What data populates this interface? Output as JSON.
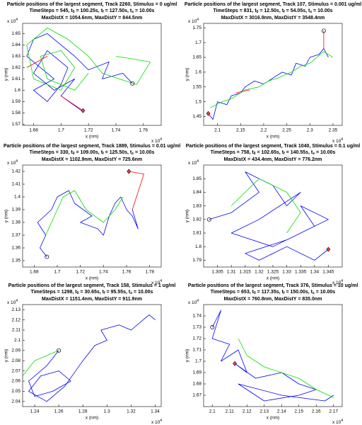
{
  "chart_data": [
    {
      "type": "line",
      "title": "Particle positions of the largest segment, Track 2260, Stimulus = 0 ug/ml",
      "subtitle": [
        "TimeSteps = 545, t",
        "0",
        " = 100.25s, t",
        "f",
        " = 127.50s, t",
        "s",
        " = 10.00s"
      ],
      "note": "MaxDistX = 1054.6nm, MaxDistY = 844.5nm",
      "xlabel": "x (nm)",
      "ylabel": "y (nm)",
      "xscale": [
        "x 10",
        "4"
      ],
      "yscale": [
        "x 10",
        "4"
      ],
      "xlim": [
        1.672,
        1.773
      ],
      "ylim": [
        1.569,
        1.659
      ],
      "xticks": [
        1.68,
        1.7,
        1.72,
        1.74,
        1.76
      ],
      "yticks": [
        1.57,
        1.58,
        1.59,
        1.6,
        1.61,
        1.62,
        1.63,
        1.64,
        1.65
      ],
      "series": [
        {
          "color": "#0000ff",
          "x": [
            1.752,
            1.745,
            1.73,
            1.735,
            1.72,
            1.71,
            1.7,
            1.69,
            1.68,
            1.675,
            1.685,
            1.695,
            1.68,
            1.69,
            1.7,
            1.705,
            1.69,
            1.68,
            1.695,
            1.71,
            1.7,
            1.715
          ],
          "values": [
            1.606,
            1.615,
            1.61,
            1.625,
            1.618,
            1.63,
            1.64,
            1.65,
            1.645,
            1.63,
            1.62,
            1.61,
            1.6,
            1.59,
            1.605,
            1.62,
            1.635,
            1.615,
            1.6,
            1.61,
            1.595,
            1.582
          ]
        },
        {
          "color": "#00dd00",
          "x": [
            1.74,
            1.765,
            1.755,
            1.73,
            1.72,
            1.705,
            1.69,
            1.675,
            1.68,
            1.7,
            1.71,
            1.7,
            1.685,
            1.69,
            1.71,
            1.72
          ],
          "values": [
            1.63,
            1.625,
            1.605,
            1.615,
            1.63,
            1.645,
            1.655,
            1.64,
            1.61,
            1.6,
            1.62,
            1.635,
            1.63,
            1.61,
            1.6,
            1.615
          ]
        },
        {
          "color": "#ff0000",
          "x": [
            1.675,
            1.69,
            null,
            1.7,
            1.716
          ],
          "values": [
            1.62,
            1.63,
            null,
            1.595,
            1.582
          ]
        }
      ],
      "start": [
        1.752,
        1.606
      ],
      "end": [
        1.716,
        1.582
      ]
    },
    {
      "type": "line",
      "title": "Particle positions of the largest segment, Track 107, Stimulus = 0.001 ug/ml",
      "subtitle": [
        "TimeSteps = 831, t",
        "0",
        " = 12.50s, t",
        "f",
        " = 54.05s, t",
        "s",
        " = 10.00s"
      ],
      "note": "MaxDistX = 3016.9nm, MaxDistY = 3548.4nm",
      "xlabel": "x (nm)",
      "ylabel": "y (nm)",
      "xscale": [
        "x 10",
        "4"
      ],
      "yscale": [
        "x 10",
        "4"
      ],
      "xlim": [
        2.07,
        2.37
      ],
      "ylim": [
        1.42,
        1.765
      ],
      "xticks": [
        2.1,
        2.15,
        2.2,
        2.25,
        2.3,
        2.35
      ],
      "yticks": [
        1.45,
        1.5,
        1.55,
        1.6,
        1.65,
        1.7,
        1.75
      ],
      "series": [
        {
          "color": "#0000ff",
          "x": [
            2.08,
            2.09,
            2.1,
            2.12,
            2.13,
            2.15,
            2.16,
            2.18,
            2.2,
            2.22,
            2.24,
            2.26,
            2.27,
            2.29,
            2.3,
            2.32,
            2.33,
            2.34
          ],
          "values": [
            1.46,
            1.44,
            1.5,
            1.49,
            1.52,
            1.53,
            1.55,
            1.57,
            1.56,
            1.58,
            1.6,
            1.59,
            1.63,
            1.62,
            1.65,
            1.66,
            1.68,
            1.65
          ]
        },
        {
          "color": "#00dd00",
          "x": [
            2.085,
            2.11,
            2.13,
            2.16,
            2.19,
            2.21,
            2.23,
            2.26,
            2.28,
            2.3,
            2.33,
            2.35
          ],
          "values": [
            1.48,
            1.5,
            1.51,
            1.54,
            1.55,
            1.57,
            1.58,
            1.6,
            1.62,
            1.63,
            1.67,
            1.65
          ]
        },
        {
          "color": "#ff0000",
          "x": [
            2.14,
            2.17,
            null,
            2.33,
            2.33
          ],
          "values": [
            1.53,
            1.54,
            null,
            1.68,
            1.74
          ]
        }
      ],
      "start": [
        2.33,
        1.74
      ],
      "end": [
        2.08,
        1.46
      ]
    },
    {
      "type": "line",
      "title": "Particle positions of the largest segment, Track 1889, Stimulus = 0.01 ug/ml",
      "subtitle": [
        "TimeSteps = 330, t",
        "0",
        " = 109.00s, t",
        "f",
        " = 125.50s, t",
        "s",
        " = 10.00s"
      ],
      "note": "MaxDistX = 1102.9nm, MaxDistY = 725.6nm",
      "xlabel": "x (nm)",
      "ylabel": "y (nm)",
      "xscale": [
        "x 10",
        "4"
      ],
      "yscale": [
        "x 10",
        "4"
      ],
      "xlim": [
        1.67,
        1.79
      ],
      "ylim": [
        1.345,
        1.425
      ],
      "xticks": [
        1.68,
        1.7,
        1.72,
        1.74,
        1.76,
        1.78
      ],
      "yticks": [
        1.35,
        1.36,
        1.37,
        1.38,
        1.39,
        1.4,
        1.41,
        1.42
      ],
      "series": [
        {
          "color": "#0000ff",
          "x": [
            1.691,
            1.685,
            1.69,
            1.683,
            1.695,
            1.7,
            1.71,
            1.715,
            1.73,
            1.72,
            1.735,
            1.74,
            1.745,
            1.75,
            1.755,
            1.76,
            1.765,
            1.77,
            1.765
          ],
          "values": [
            1.353,
            1.36,
            1.37,
            1.38,
            1.39,
            1.4,
            1.405,
            1.395,
            1.385,
            1.38,
            1.375,
            1.37,
            1.385,
            1.395,
            1.4,
            1.39,
            1.385,
            1.375,
            1.39
          ]
        },
        {
          "color": "#00dd00",
          "x": [
            1.69,
            1.7,
            1.705,
            1.715,
            1.725,
            1.74,
            1.75,
            1.757
          ],
          "values": [
            1.37,
            1.39,
            1.4,
            1.405,
            1.39,
            1.38,
            1.39,
            1.4
          ]
        },
        {
          "color": "#ff0000",
          "x": [
            1.765,
            1.775,
            1.762
          ],
          "values": [
            1.39,
            1.418,
            1.42
          ]
        }
      ],
      "start": [
        1.691,
        1.353
      ],
      "end": [
        1.762,
        1.42
      ]
    },
    {
      "type": "line",
      "title": "Particle positions of the largest segment, Track 1040, Stimulus = 0.1 ug/ml",
      "subtitle": [
        "TimeSteps = 758, t",
        "0",
        " = 102.65s, t",
        "f",
        " = 140.55s, t",
        "s",
        " = 10.00s"
      ],
      "note": "MaxDistX = 434.4nm, MaxDistY = 776.2nm",
      "xlabel": "x (nm)",
      "ylabel": "y (nm)",
      "xscale": [
        "x 10",
        "4"
      ],
      "yscale": [
        "x 10",
        "4"
      ],
      "xlim": [
        1.3,
        1.35
      ],
      "ylim": [
        1.785,
        1.86
      ],
      "xticks": [
        1.305,
        1.31,
        1.315,
        1.32,
        1.325,
        1.33,
        1.335,
        1.34,
        1.345
      ],
      "yticks": [
        1.79,
        1.8,
        1.81,
        1.82,
        1.83,
        1.84,
        1.85
      ],
      "series": [
        {
          "color": "#0000ff",
          "x": [
            1.302,
            1.31,
            1.32,
            1.315,
            1.325,
            1.33,
            1.335,
            1.32,
            1.31,
            1.325,
            1.34,
            1.335,
            1.345,
            1.33,
            1.315,
            1.32,
            1.33,
            1.34,
            1.345
          ],
          "values": [
            1.82,
            1.825,
            1.84,
            1.855,
            1.845,
            1.83,
            1.84,
            1.82,
            1.81,
            1.8,
            1.815,
            1.83,
            1.82,
            1.805,
            1.795,
            1.79,
            1.8,
            1.79,
            1.798
          ]
        },
        {
          "color": "#00dd00",
          "x": [
            1.31,
            1.32,
            1.33,
            1.335,
            1.33
          ],
          "values": [
            1.83,
            1.85,
            1.84,
            1.825,
            1.81
          ]
        }
      ],
      "start": [
        1.302,
        1.82
      ],
      "end": [
        1.345,
        1.798
      ]
    },
    {
      "type": "line",
      "title": "Particle positions of the largest segment, Track 158, Stimulus = 1 ug/ml",
      "subtitle": [
        "TimeSteps = 1298, t",
        "0",
        " = 30.65s, t",
        "f",
        " = 95.55s, t",
        "s",
        " = 10.00s"
      ],
      "note": "MaxDistX = 1151.4nm, MaxDistY = 911.9nm",
      "xlabel": "x (nm)",
      "ylabel": "y (nm)",
      "xscale": [
        "x 10",
        "4"
      ],
      "yscale": [
        "x 10",
        "4"
      ],
      "xlim": [
        1.23,
        1.345
      ],
      "ylim": [
        2.035,
        2.135
      ],
      "xticks": [
        1.24,
        1.26,
        1.28,
        1.3,
        1.32,
        1.34
      ],
      "yticks": [
        2.04,
        2.05,
        2.06,
        2.07,
        2.08,
        2.09,
        2.1,
        2.11,
        2.12,
        2.13
      ],
      "series": [
        {
          "color": "#0000ff",
          "x": [
            1.26,
            1.25,
            1.235,
            1.24,
            1.255,
            1.27,
            1.26,
            1.245,
            1.235,
            1.25,
            1.265,
            1.28,
            1.29,
            1.3,
            1.295,
            1.31,
            1.32,
            1.33,
            1.335,
            1.34
          ],
          "values": [
            2.09,
            2.075,
            2.06,
            2.045,
            2.05,
            2.06,
            2.07,
            2.065,
            2.05,
            2.04,
            2.055,
            2.08,
            2.095,
            2.1,
            2.11,
            2.115,
            2.11,
            2.12,
            2.125,
            2.12
          ]
        },
        {
          "color": "#00dd00",
          "x": [
            1.23,
            1.24,
            1.26
          ],
          "values": [
            2.065,
            2.08,
            2.09
          ]
        }
      ],
      "start": [
        1.26,
        2.09
      ]
    },
    {
      "type": "line",
      "title": "Particle positions of the largest segment, Track 376, Stimulus = 10 ug/ml",
      "subtitle": [
        "TimeSteps = 653, t",
        "0",
        " = 117.35s, t",
        "f",
        " = 150.00s, t",
        "s",
        " = 10.00s"
      ],
      "note": "MaxDistX = 760.8nm, MaxDistY = 835.0nm",
      "xlabel": "x (nm)",
      "ylabel": "y (nm)",
      "xscale": [
        "x 10",
        "4"
      ],
      "yscale": [
        "x 10",
        "4"
      ],
      "xlim": [
        2.095,
        2.175
      ],
      "ylim": [
        1.66,
        1.75
      ],
      "xticks": [
        2.1,
        2.11,
        2.12,
        2.13,
        2.14,
        2.15,
        2.16,
        2.17
      ],
      "yticks": [
        1.67,
        1.68,
        1.69,
        1.7,
        1.71,
        1.72,
        1.73,
        1.74
      ],
      "series": [
        {
          "color": "#0000ff",
          "x": [
            2.1,
            2.105,
            2.1,
            2.11,
            2.105,
            2.115,
            2.12,
            2.113,
            2.125,
            2.14,
            2.15,
            2.16,
            2.15,
            2.13,
            2.115,
            2.14,
            2.165,
            2.17
          ],
          "values": [
            1.73,
            1.745,
            1.72,
            1.715,
            1.7,
            1.71,
            1.69,
            1.698,
            1.685,
            1.69,
            1.68,
            1.675,
            1.67,
            1.665,
            1.68,
            1.67,
            1.665,
            1.67
          ]
        },
        {
          "color": "#00dd00",
          "x": [
            2.115,
            2.12,
            2.13,
            2.15,
            2.16,
            2.17
          ],
          "values": [
            1.72,
            1.705,
            1.695,
            1.685,
            1.675,
            1.668
          ]
        }
      ],
      "start": [
        2.1,
        1.73
      ],
      "end": [
        2.113,
        1.698
      ]
    }
  ]
}
